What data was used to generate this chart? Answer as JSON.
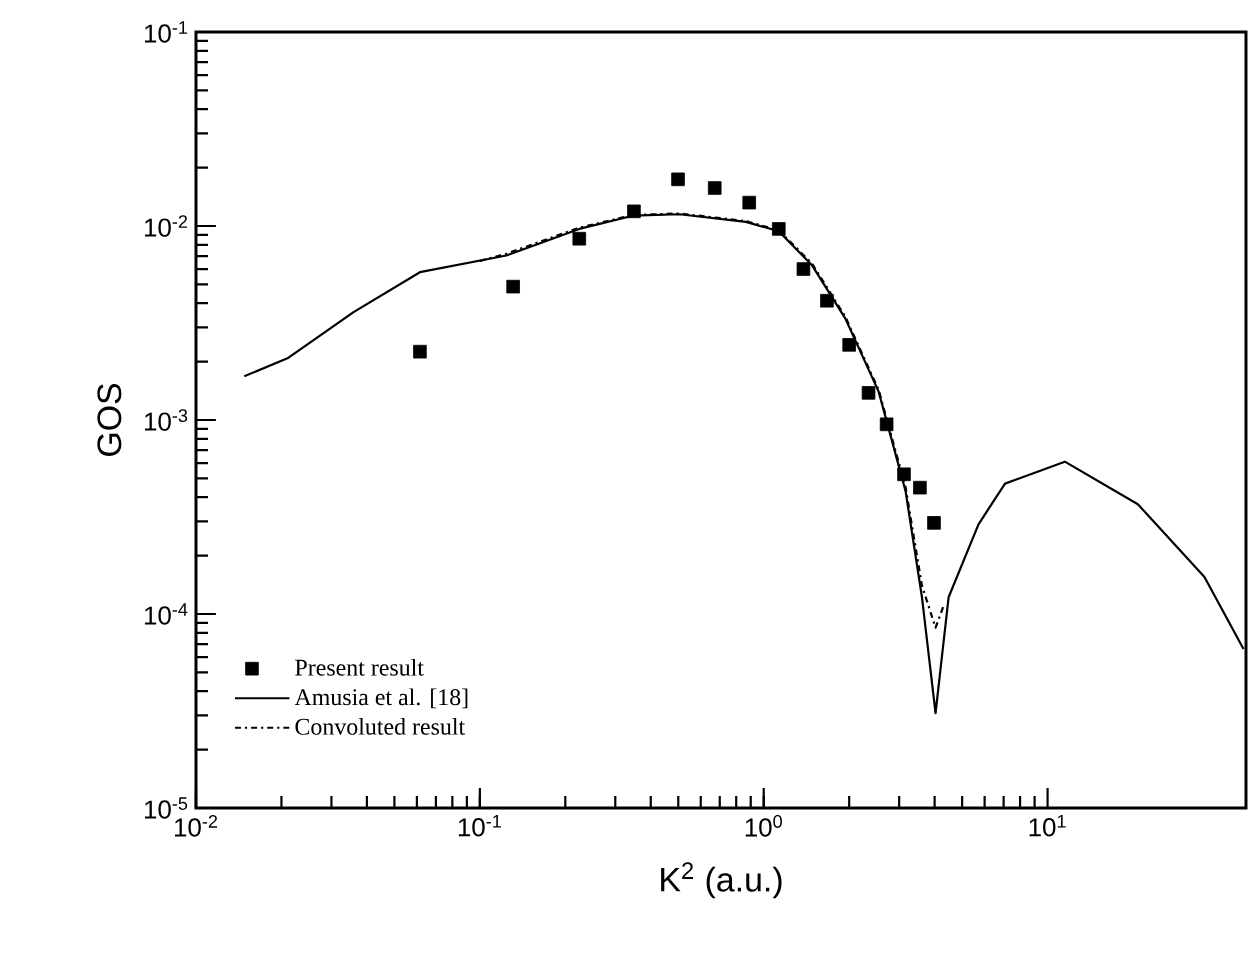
{
  "chart_data": {
    "type": "line",
    "xlabel": "K$^{2}$ (a.u.)",
    "ylabel": "GOS",
    "log": "xy",
    "xlim": [
      0.01,
      50
    ],
    "ylim": [
      1e-05,
      0.1
    ],
    "xticks": [
      {
        "value": 0.01,
        "label": "10$^{-2}$"
      },
      {
        "value": 0.1,
        "label": "10$^{-1}$"
      },
      {
        "value": 1,
        "label": "10$^{0}$"
      },
      {
        "value": 10,
        "label": "10$^{1}$"
      }
    ],
    "yticks": [
      {
        "value": 1e-05,
        "label": "10$^{-5}$"
      },
      {
        "value": 0.0001,
        "label": "10$^{-4}$"
      },
      {
        "value": 0.001,
        "label": "10$^{-3}$"
      },
      {
        "value": 0.01,
        "label": "10$^{-2}$"
      },
      {
        "value": 0.1,
        "label": "10$^{-1}$"
      }
    ],
    "legend": "bottom left",
    "grid": false,
    "series": [
      {
        "name": "Present result",
        "type": "scatter",
        "marker": "square",
        "color": "#000000",
        "x": [
          0.0615,
          0.131,
          0.224,
          0.349,
          0.499,
          0.672,
          0.889,
          1.13,
          1.38,
          1.67,
          2.0,
          2.34,
          2.71,
          3.12,
          3.55,
          3.98
        ],
        "values": [
          0.00225,
          0.00487,
          0.0086,
          0.0119,
          0.0174,
          0.0157,
          0.0132,
          0.00966,
          0.006,
          0.00412,
          0.00244,
          0.00138,
          0.00095,
          0.000525,
          0.000448,
          0.000295
        ]
      },
      {
        "name": "Amusia et al. [18]",
        "line_style": "solid",
        "marker": "none",
        "color": "#000000",
        "x": [
          0.0148,
          0.021,
          0.0359,
          0.0615,
          0.124,
          0.224,
          0.346,
          0.505,
          0.865,
          1.13,
          1.48,
          1.94,
          2.54,
          3.16,
          3.61,
          4.03,
          4.48,
          5.71,
          7.08,
          11.5,
          20.8,
          35.7,
          49
        ],
        "values": [
          0.00168,
          0.00208,
          0.0036,
          0.00578,
          0.00705,
          0.00966,
          0.0113,
          0.0115,
          0.0105,
          0.0094,
          0.00627,
          0.00333,
          0.0014,
          0.00043,
          0.000122,
          3.08e-05,
          0.000122,
          0.00029,
          0.00047,
          0.00061,
          0.000368,
          0.000155,
          6.6e-05
        ]
      },
      {
        "name": "Convoluted result",
        "line_style": "dashdot",
        "marker": "none",
        "color": "#000000",
        "x": [
          0.1,
          0.124,
          0.224,
          0.346,
          0.505,
          0.865,
          1.13,
          1.48,
          1.94,
          2.54,
          3.16,
          3.61,
          4.03,
          4.3
        ],
        "values": [
          0.0066,
          0.0072,
          0.0098,
          0.0114,
          0.0116,
          0.0106,
          0.0095,
          0.0064,
          0.0034,
          0.00143,
          0.00045,
          0.00014,
          8.5e-05,
          0.00011
        ]
      }
    ]
  }
}
